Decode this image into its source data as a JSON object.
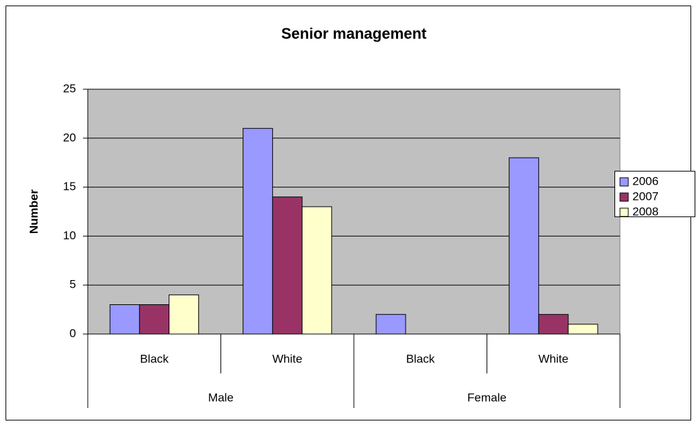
{
  "chart_data": {
    "type": "bar",
    "title": "Senior management",
    "y_label": "Number",
    "categories": [
      "Black",
      "White",
      "Black",
      "White"
    ],
    "group_labels": [
      "Male",
      "Female"
    ],
    "series": [
      {
        "name": "2006",
        "color": "#9999ff",
        "values": [
          3,
          21,
          2,
          18
        ]
      },
      {
        "name": "2007",
        "color": "#993366",
        "values": [
          3,
          14,
          0,
          2
        ]
      },
      {
        "name": "2008",
        "color": "#ffffcc",
        "values": [
          4,
          13,
          0,
          1
        ]
      }
    ],
    "ylim": [
      0,
      25
    ],
    "yticks": [
      0,
      5,
      10,
      15,
      20,
      25
    ],
    "grid": true,
    "legend": "right"
  }
}
